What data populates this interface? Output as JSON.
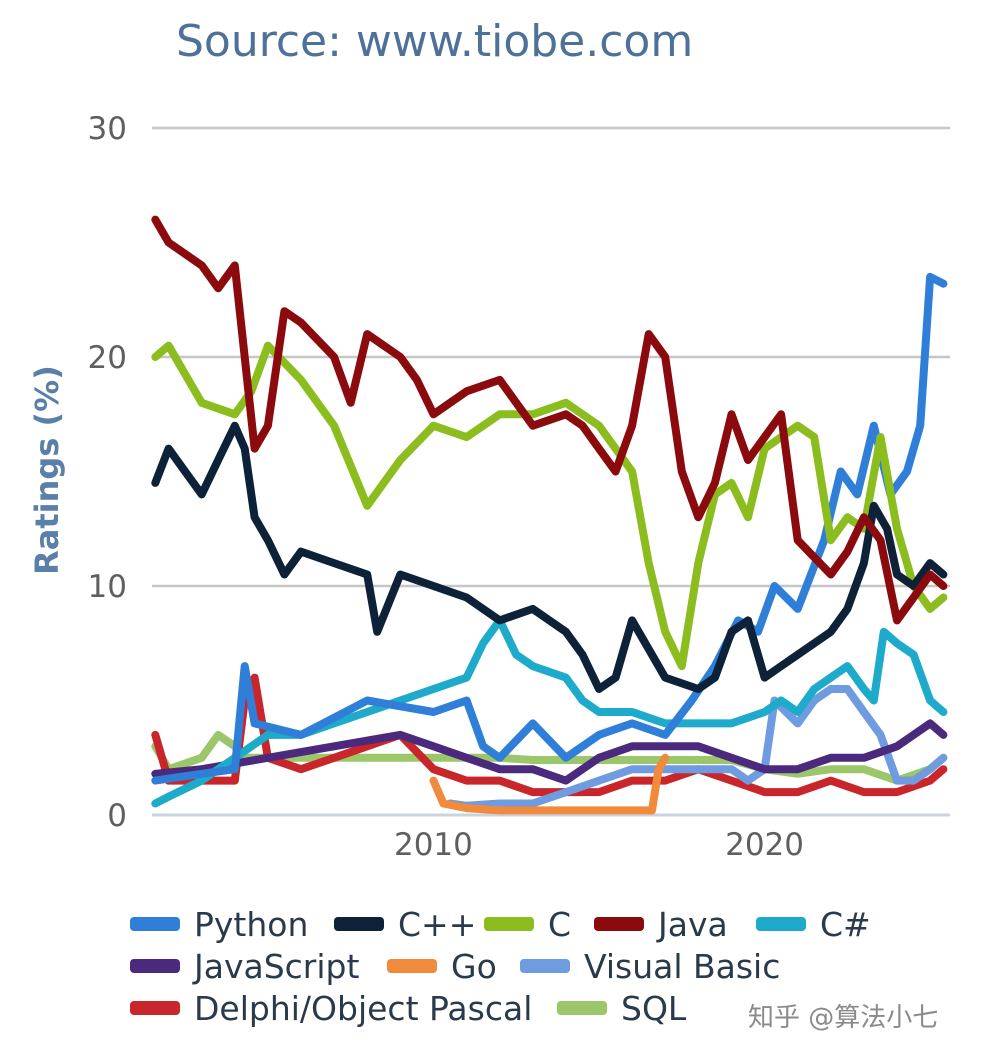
{
  "chart_data": {
    "type": "line",
    "title": "Source: www.tiobe.com",
    "xlabel": "",
    "ylabel": "Ratings (%)",
    "xlim": [
      2001.5,
      2025.6
    ],
    "ylim": [
      0,
      30
    ],
    "x_ticks": [
      2010,
      2020
    ],
    "y_ticks": [
      0,
      10,
      20,
      30
    ],
    "grid": true,
    "legend_position": "bottom",
    "series": [
      {
        "name": "Python",
        "color": "#2f7fd8",
        "x": [
          2001.6,
          2003.0,
          2004.0,
          2004.3,
          2004.6,
          2006.0,
          2008.0,
          2010.0,
          2011.0,
          2011.5,
          2012.0,
          2013.0,
          2014.0,
          2015.0,
          2016.0,
          2017.0,
          2017.8,
          2018.5,
          2019.2,
          2019.8,
          2020.3,
          2021.0,
          2021.8,
          2022.3,
          2022.8,
          2023.3,
          2023.8,
          2024.3,
          2024.7,
          2025.0,
          2025.4
        ],
        "y": [
          1.5,
          1.8,
          2.0,
          6.5,
          4.0,
          3.5,
          5.0,
          4.5,
          5.0,
          3.0,
          2.5,
          4.0,
          2.5,
          3.5,
          4.0,
          3.5,
          5.0,
          6.5,
          8.5,
          8.0,
          10.0,
          9.0,
          12.0,
          15.0,
          14.0,
          17.0,
          14.0,
          15.0,
          17.0,
          23.5,
          23.2
        ]
      },
      {
        "name": "C++",
        "color": "#0d2238",
        "x": [
          2001.6,
          2002.0,
          2002.5,
          2003.0,
          2003.5,
          2004.0,
          2004.3,
          2004.6,
          2005.0,
          2005.5,
          2006.0,
          2007.0,
          2008.0,
          2008.3,
          2009.0,
          2010.0,
          2011.0,
          2012.0,
          2013.0,
          2014.0,
          2014.5,
          2015.0,
          2015.5,
          2016.0,
          2017.0,
          2018.0,
          2018.5,
          2019.0,
          2019.5,
          2020.0,
          2020.5,
          2021.0,
          2022.0,
          2022.5,
          2023.0,
          2023.3,
          2023.7,
          2024.0,
          2024.5,
          2025.0,
          2025.4
        ],
        "y": [
          14.5,
          16.0,
          15.0,
          14.0,
          15.5,
          17.0,
          16.0,
          13.0,
          12.0,
          10.5,
          11.5,
          11.0,
          10.5,
          8.0,
          10.5,
          10.0,
          9.5,
          8.5,
          9.0,
          8.0,
          7.0,
          5.5,
          6.0,
          8.5,
          6.0,
          5.5,
          6.0,
          8.0,
          8.5,
          6.0,
          6.5,
          7.0,
          8.0,
          9.0,
          11.0,
          13.5,
          12.5,
          10.5,
          10.0,
          11.0,
          10.5
        ]
      },
      {
        "name": "C",
        "color": "#8cbd1f",
        "x": [
          2001.6,
          2002.0,
          2003.0,
          2004.0,
          2004.5,
          2005.0,
          2006.0,
          2007.0,
          2008.0,
          2009.0,
          2010.0,
          2011.0,
          2012.0,
          2013.0,
          2014.0,
          2015.0,
          2016.0,
          2016.5,
          2017.0,
          2017.5,
          2018.0,
          2018.5,
          2019.0,
          2019.5,
          2020.0,
          2020.5,
          2021.0,
          2021.5,
          2022.0,
          2022.5,
          2023.0,
          2023.5,
          2024.0,
          2024.5,
          2025.0,
          2025.4
        ],
        "y": [
          20.0,
          20.5,
          18.0,
          17.5,
          18.5,
          20.5,
          19.0,
          17.0,
          13.5,
          15.5,
          17.0,
          16.5,
          17.5,
          17.5,
          18.0,
          17.0,
          15.0,
          11.0,
          8.0,
          6.5,
          11.0,
          14.0,
          14.5,
          13.0,
          16.0,
          16.5,
          17.0,
          16.5,
          12.0,
          13.0,
          12.5,
          16.5,
          12.5,
          10.0,
          9.0,
          9.5
        ]
      },
      {
        "name": "Java",
        "color": "#8b0a0e",
        "x": [
          2001.6,
          2002.0,
          2003.0,
          2003.5,
          2004.0,
          2004.3,
          2004.6,
          2005.0,
          2005.5,
          2006.0,
          2007.0,
          2007.5,
          2008.0,
          2009.0,
          2009.5,
          2010.0,
          2011.0,
          2012.0,
          2013.0,
          2014.0,
          2014.5,
          2015.0,
          2015.5,
          2016.0,
          2016.5,
          2017.0,
          2017.5,
          2018.0,
          2018.5,
          2019.0,
          2019.5,
          2020.0,
          2020.5,
          2021.0,
          2022.0,
          2022.5,
          2023.0,
          2023.5,
          2024.0,
          2024.5,
          2025.0,
          2025.4
        ],
        "y": [
          26.0,
          25.0,
          24.0,
          23.0,
          24.0,
          20.0,
          16.0,
          17.0,
          22.0,
          21.5,
          20.0,
          18.0,
          21.0,
          20.0,
          19.0,
          17.5,
          18.5,
          19.0,
          17.0,
          17.5,
          17.0,
          16.0,
          15.0,
          17.0,
          21.0,
          20.0,
          15.0,
          13.0,
          14.5,
          17.5,
          15.5,
          16.5,
          17.5,
          12.0,
          10.5,
          11.5,
          13.0,
          12.0,
          8.5,
          9.5,
          10.5,
          10.0
        ]
      },
      {
        "name": "C#",
        "color": "#1eaacb",
        "x": [
          2001.6,
          2002.0,
          2003.0,
          2004.0,
          2005.0,
          2006.0,
          2007.0,
          2008.0,
          2009.0,
          2010.0,
          2011.0,
          2011.5,
          2012.0,
          2012.5,
          2013.0,
          2014.0,
          2014.5,
          2015.0,
          2016.0,
          2017.0,
          2018.0,
          2019.0,
          2020.0,
          2020.5,
          2021.0,
          2021.5,
          2022.0,
          2022.5,
          2023.0,
          2023.3,
          2023.6,
          2024.0,
          2024.5,
          2025.0,
          2025.4
        ],
        "y": [
          0.5,
          0.8,
          1.5,
          2.5,
          3.5,
          3.5,
          4.0,
          4.5,
          5.0,
          5.5,
          6.0,
          7.5,
          8.5,
          7.0,
          6.5,
          6.0,
          5.0,
          4.5,
          4.5,
          4.0,
          4.0,
          4.0,
          4.5,
          5.0,
          4.5,
          5.5,
          6.0,
          6.5,
          5.5,
          5.0,
          8.0,
          7.5,
          7.0,
          5.0,
          4.5
        ]
      },
      {
        "name": "JavaScript",
        "color": "#4b2a7d",
        "x": [
          2001.6,
          2003.0,
          2005.0,
          2007.0,
          2009.0,
          2010.0,
          2011.0,
          2012.0,
          2013.0,
          2014.0,
          2015.0,
          2016.0,
          2017.0,
          2018.0,
          2019.0,
          2020.0,
          2021.0,
          2022.0,
          2023.0,
          2024.0,
          2025.0,
          2025.4
        ],
        "y": [
          1.8,
          2.0,
          2.5,
          3.0,
          3.5,
          3.0,
          2.5,
          2.0,
          2.0,
          1.5,
          2.5,
          3.0,
          3.0,
          3.0,
          2.5,
          2.0,
          2.0,
          2.5,
          2.5,
          3.0,
          4.0,
          3.5
        ]
      },
      {
        "name": "Go",
        "color": "#f08a3c",
        "x": [
          2010.0,
          2010.3,
          2011.0,
          2012.0,
          2013.0,
          2014.0,
          2015.0,
          2016.0,
          2016.6,
          2016.8,
          2017.0
        ],
        "y": [
          1.5,
          0.5,
          0.3,
          0.2,
          0.2,
          0.2,
          0.2,
          0.2,
          0.2,
          2.0,
          2.5
        ]
      },
      {
        "name": "Visual Basic",
        "color": "#6f9be0",
        "x": [
          2010.5,
          2011.0,
          2012.0,
          2013.0,
          2014.0,
          2015.0,
          2016.0,
          2017.0,
          2018.0,
          2019.0,
          2019.5,
          2020.0,
          2020.3,
          2021.0,
          2021.5,
          2022.0,
          2022.5,
          2023.0,
          2023.5,
          2024.0,
          2024.5,
          2025.0,
          2025.4
        ],
        "y": [
          0.5,
          0.4,
          0.5,
          0.5,
          1.0,
          1.5,
          2.0,
          2.0,
          2.0,
          2.0,
          1.5,
          2.0,
          5.0,
          4.0,
          5.0,
          5.5,
          5.5,
          4.5,
          3.5,
          1.5,
          1.5,
          2.0,
          2.5
        ]
      },
      {
        "name": "Delphi/Object Pascal",
        "color": "#c8262a",
        "x": [
          2001.6,
          2002.0,
          2003.0,
          2004.0,
          2004.3,
          2004.6,
          2005.0,
          2006.0,
          2007.0,
          2008.0,
          2009.0,
          2010.0,
          2011.0,
          2012.0,
          2013.0,
          2014.0,
          2015.0,
          2016.0,
          2017.0,
          2018.0,
          2019.0,
          2020.0,
          2021.0,
          2022.0,
          2023.0,
          2024.0,
          2025.0,
          2025.4
        ],
        "y": [
          3.5,
          1.5,
          1.5,
          1.5,
          5.0,
          6.0,
          2.5,
          2.0,
          2.5,
          3.0,
          3.5,
          2.0,
          1.5,
          1.5,
          1.0,
          1.0,
          1.0,
          1.5,
          1.5,
          2.0,
          1.5,
          1.0,
          1.0,
          1.5,
          1.0,
          1.0,
          1.5,
          2.0
        ]
      },
      {
        "name": "SQL",
        "color": "#9bc76a",
        "x": [
          2001.6,
          2002.0,
          2003.0,
          2003.5,
          2004.0,
          2004.3,
          2005.0,
          2006.0,
          2007.0,
          2008.0,
          2009.0,
          2010.0,
          2011.0,
          2012.0,
          2013.0,
          2014.0,
          2015.0,
          2016.0,
          2017.0,
          2018.0,
          2019.0,
          2020.0,
          2021.0,
          2022.0,
          2023.0,
          2024.0,
          2025.0,
          2025.4
        ],
        "y": [
          3.0,
          2.0,
          2.5,
          3.5,
          3.0,
          2.5,
          2.5,
          2.5,
          2.5,
          2.5,
          2.5,
          2.5,
          2.5,
          2.5,
          2.4,
          2.4,
          2.4,
          2.4,
          2.4,
          2.4,
          2.4,
          2.0,
          1.8,
          2.0,
          2.0,
          1.5,
          2.0,
          2.5
        ]
      }
    ]
  },
  "watermark": "知乎 @算法小七"
}
